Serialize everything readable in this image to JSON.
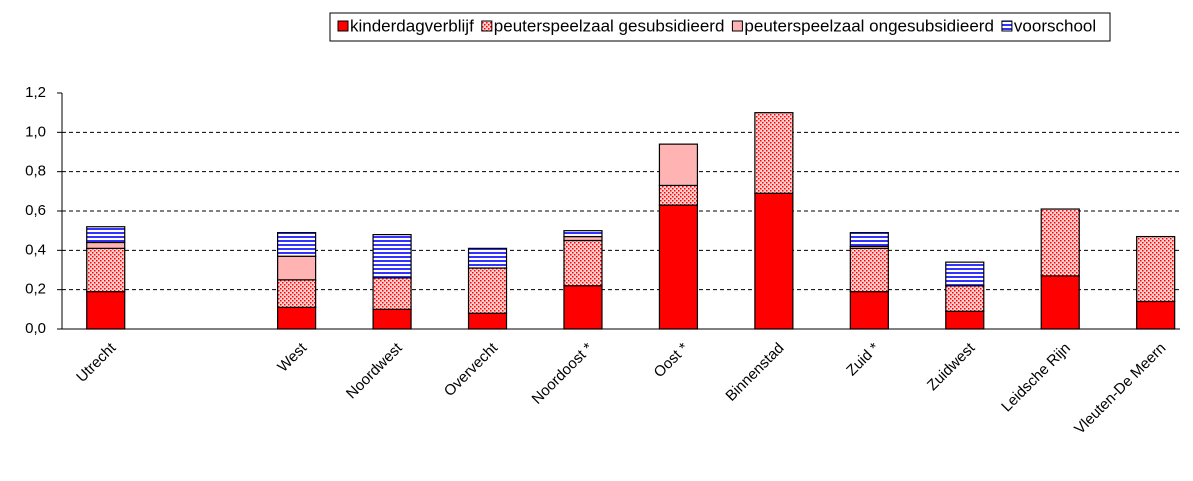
{
  "chart_data": {
    "type": "stacked_bar",
    "categories": [
      "Utrecht",
      null,
      "West",
      "Noordwest",
      "Overvecht",
      "Noordoost *",
      "Oost *",
      "Binnenstad",
      "Zuid *",
      "Zuidwest",
      "Leidsche Rijn",
      "Vleuten-De Meern"
    ],
    "series": [
      {
        "name": "kinderdagverblijf",
        "color": "#ff0000",
        "pattern": "solid",
        "values": [
          0.19,
          null,
          0.11,
          0.1,
          0.08,
          0.22,
          0.63,
          0.69,
          0.19,
          0.09,
          0.27,
          0.14
        ]
      },
      {
        "name": "peuterspeelzaal gesubsidieerd",
        "color": "#ff0000",
        "pattern": "dots",
        "values": [
          0.22,
          null,
          0.14,
          0.16,
          0.23,
          0.23,
          0.1,
          0.41,
          0.22,
          0.13,
          0.34,
          0.33
        ]
      },
      {
        "name": "peuterspeelzaal ongesubsidieerd",
        "color": "#ffb3b3",
        "pattern": "solid",
        "values": [
          0.03,
          null,
          0.12,
          0,
          0,
          0.02,
          0.21,
          0,
          0.01,
          0,
          0,
          0
        ]
      },
      {
        "name": "voorschool",
        "color": "#3333ff",
        "pattern": "stripes",
        "values": [
          0.08,
          null,
          0.12,
          0.22,
          0.1,
          0.03,
          0,
          0,
          0.07,
          0.12,
          0,
          0
        ]
      }
    ],
    "ylim": [
      0,
      1.2
    ],
    "yticks": [
      {
        "value": 0,
        "label": "0,0"
      },
      {
        "value": 0.2,
        "label": "0,2"
      },
      {
        "value": 0.4,
        "label": "0,4"
      },
      {
        "value": 0.6,
        "label": "0,6"
      },
      {
        "value": 0.8,
        "label": "0,8"
      },
      {
        "value": 1.0,
        "label": "1,0"
      },
      {
        "value": 1.2,
        "label": "1,2"
      }
    ],
    "grid": true,
    "legend": "top"
  }
}
